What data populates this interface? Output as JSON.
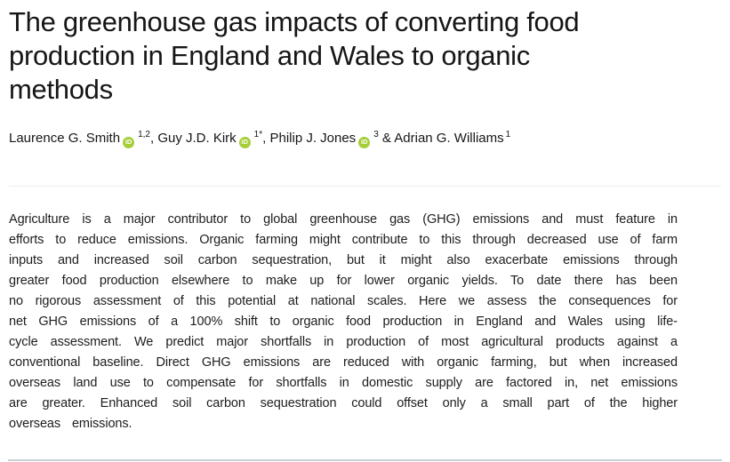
{
  "paper": {
    "title_lines": [
      "The greenhouse gas impacts of converting food",
      "production in England and Wales to organic",
      "methods"
    ],
    "authors": [
      {
        "name": "Laurence G. Smith",
        "sup": "1,2",
        "sep": ", ",
        "orcid": true
      },
      {
        "name": "Guy J.D. Kirk",
        "sup": "1*",
        "sep": ", ",
        "orcid": true
      },
      {
        "name": "Philip J. Jones",
        "sup": "3",
        "sep": " & ",
        "orcid": true
      },
      {
        "name": "Adrian G. Williams",
        "sup": "1",
        "sep": "",
        "orcid": false
      }
    ],
    "orcid_label": "iD",
    "orcid_color": "#a6ce39",
    "abstract": "Agriculture is a major contributor to global greenhouse gas (GHG) emissions and must feature in efforts to reduce emissions. Organic farming might contribute to this through decreased use of farm inputs and increased soil carbon sequestration, but it might also exacerbate emissions through greater food production elsewhere to make up for lower organic yields. To date there has been no rigorous assessment of this potential at national scales. Here we assess the consequences for net GHG emissions of a 100% shift to organic food production in England and Wales using life-cycle assessment. We predict major shortfalls in production of most agricultural products against a conventional baseline. Direct GHG emissions are reduced with organic farming, but when increased overseas land use to compensate for shortfalls in domestic supply are factored in, net emissions are greater. Enhanced soil carbon sequestration could offset only a small part of the higher overseas emissions."
  }
}
